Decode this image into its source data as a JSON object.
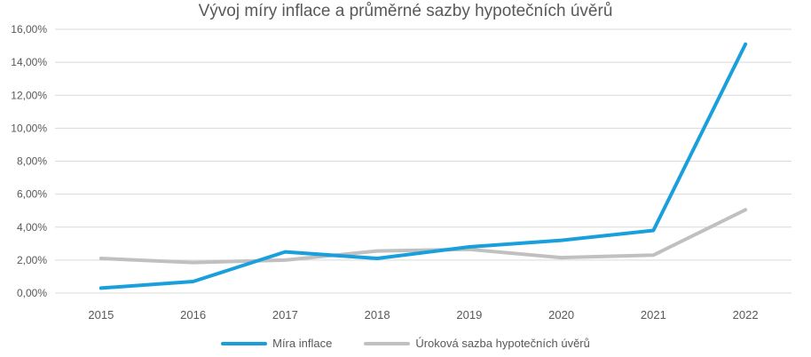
{
  "chart_data": {
    "type": "line",
    "title": "Vývoj míry inflace a průměrné sazby hypotečních úvěrů",
    "xlabel": "",
    "ylabel": "",
    "x": [
      "2015",
      "2016",
      "2017",
      "2018",
      "2019",
      "2020",
      "2021",
      "2022"
    ],
    "ylim": [
      0,
      16
    ],
    "yticks": [
      "0,00%",
      "2,00%",
      "4,00%",
      "6,00%",
      "8,00%",
      "10,00%",
      "12,00%",
      "14,00%",
      "16,00%"
    ],
    "ytick_values": [
      0,
      2,
      4,
      6,
      8,
      10,
      12,
      14,
      16
    ],
    "grid": true,
    "legend_position": "bottom",
    "series": [
      {
        "name": "Míra inflace",
        "color": "#19a0dc",
        "values": [
          0.3,
          0.7,
          2.5,
          2.1,
          2.8,
          3.2,
          3.8,
          15.1
        ]
      },
      {
        "name": "Úroková sazba hypotečních úvěrů",
        "color": "#c0c0c0",
        "values": [
          2.1,
          1.85,
          2.0,
          2.55,
          2.65,
          2.15,
          2.3,
          5.05
        ]
      }
    ]
  }
}
